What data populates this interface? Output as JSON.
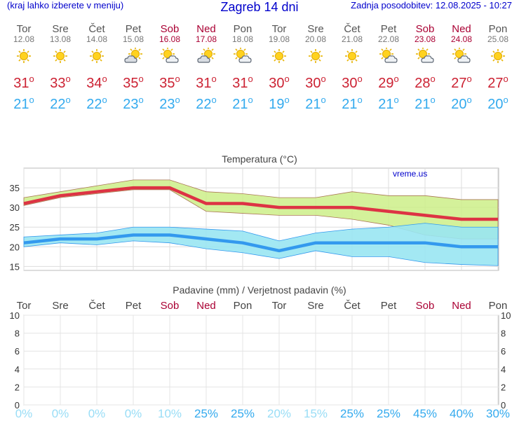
{
  "header": {
    "menu_hint": "(kraj lahko izberete v meniju)",
    "title": "Zagreb 14 dni",
    "updated": "Zadnja posodobitev: 12.08.2025 - 10:27"
  },
  "days": [
    {
      "name": "Tor",
      "date": "12.08",
      "weekend": false,
      "icon": "sun-icon",
      "max": "31",
      "min": "21"
    },
    {
      "name": "Sre",
      "date": "13.08",
      "weekend": false,
      "icon": "sun-icon",
      "max": "33",
      "min": "22"
    },
    {
      "name": "Čet",
      "date": "14.08",
      "weekend": false,
      "icon": "sun-icon",
      "max": "34",
      "min": "22"
    },
    {
      "name": "Pet",
      "date": "15.08",
      "weekend": false,
      "icon": "cloud-sun-icon",
      "max": "35",
      "min": "23"
    },
    {
      "name": "Sob",
      "date": "16.08",
      "weekend": true,
      "icon": "sun-cloud-icon",
      "max": "35",
      "min": "23"
    },
    {
      "name": "Ned",
      "date": "17.08",
      "weekend": true,
      "icon": "cloud-sun-icon",
      "max": "31",
      "min": "22"
    },
    {
      "name": "Pon",
      "date": "18.08",
      "weekend": false,
      "icon": "sun-cloud-icon",
      "max": "31",
      "min": "21"
    },
    {
      "name": "Tor",
      "date": "19.08",
      "weekend": false,
      "icon": "sun-icon",
      "max": "30",
      "min": "19"
    },
    {
      "name": "Sre",
      "date": "20.08",
      "weekend": false,
      "icon": "sun-icon",
      "max": "30",
      "min": "21"
    },
    {
      "name": "Čet",
      "date": "21.08",
      "weekend": false,
      "icon": "sun-icon",
      "max": "30",
      "min": "21"
    },
    {
      "name": "Pet",
      "date": "22.08",
      "weekend": false,
      "icon": "sun-cloud-icon",
      "max": "29",
      "min": "21"
    },
    {
      "name": "Sob",
      "date": "23.08",
      "weekend": true,
      "icon": "sun-cloud-icon",
      "max": "28",
      "min": "21"
    },
    {
      "name": "Ned",
      "date": "24.08",
      "weekend": true,
      "icon": "sun-cloud-icon",
      "max": "27",
      "min": "20"
    },
    {
      "name": "Pon",
      "date": "25.08",
      "weekend": false,
      "icon": "sun-icon",
      "max": "27",
      "min": "20"
    }
  ],
  "chart_data": [
    {
      "type": "line",
      "title": "Temperatura (°C)",
      "watermark": "vreme.us",
      "ylim": [
        14,
        40
      ],
      "yticks": [
        15,
        20,
        25,
        30,
        35
      ],
      "series": [
        {
          "name": "max",
          "color": "#dd3344",
          "values": [
            31,
            33,
            34,
            35,
            35,
            31,
            31,
            30,
            30,
            30,
            29,
            28,
            27,
            27
          ],
          "band_low": [
            30.5,
            32.5,
            33.5,
            34.5,
            34.5,
            29,
            28.5,
            28,
            28,
            27,
            25.5,
            23,
            22,
            22
          ],
          "band_high": [
            32.5,
            34,
            35.5,
            37,
            37,
            34,
            33.5,
            32.5,
            32.5,
            34,
            33,
            33,
            32,
            32
          ]
        },
        {
          "name": "min",
          "color": "#3399ee",
          "values": [
            21,
            22,
            22,
            23,
            23,
            22,
            21,
            19,
            21,
            21,
            21,
            21,
            20,
            20
          ],
          "band_low": [
            20,
            21,
            20.5,
            21.5,
            21,
            19.5,
            18.5,
            17,
            19,
            17.5,
            17.5,
            16,
            15.5,
            15.2
          ],
          "band_high": [
            22.5,
            23,
            23.5,
            25,
            25,
            24.5,
            24,
            21.5,
            23.5,
            24.5,
            25,
            26,
            25,
            25
          ]
        }
      ]
    },
    {
      "type": "bar",
      "title": "Padavine (mm) / Verjetnost padavin (%)",
      "ylim": [
        0,
        10
      ],
      "yticks": [
        0,
        2,
        4,
        6,
        8,
        10
      ],
      "precip_mm": [
        0,
        0,
        0,
        0,
        0,
        0,
        0,
        0,
        0,
        0,
        0,
        0,
        0,
        0
      ],
      "probability": [
        "0%",
        "0%",
        "0%",
        "0%",
        "10%",
        "25%",
        "25%",
        "20%",
        "15%",
        "25%",
        "25%",
        "45%",
        "40%",
        "30%"
      ]
    }
  ],
  "colors": {
    "max": "#dd3344",
    "min": "#3399ee",
    "weekend": "#aa0033",
    "title": "#0000cc",
    "maxband": "#ccee88",
    "minband": "#99e6f2"
  }
}
